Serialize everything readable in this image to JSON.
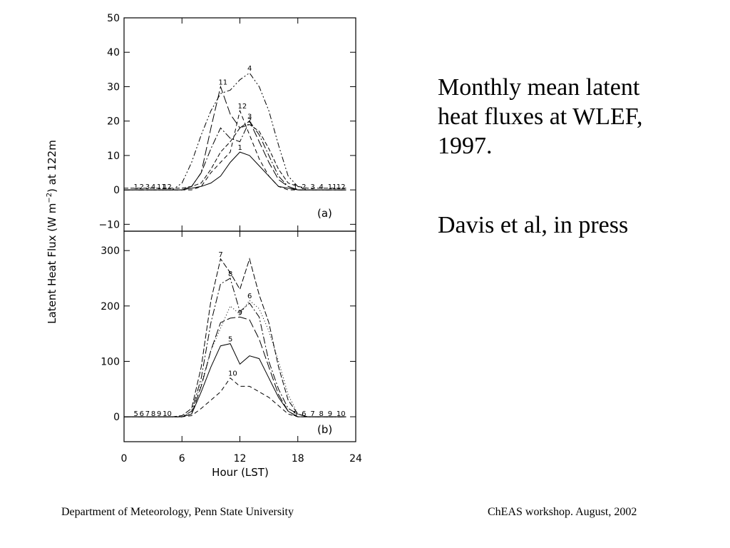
{
  "caption": {
    "line1": "Monthly mean latent",
    "line2": "heat fluxes at WLEF,",
    "line3": "1997.",
    "citation": "Davis et al, in press"
  },
  "footer": {
    "left": "Department of Meteorology, Penn State University",
    "right": "ChEAS workshop. August, 2002"
  },
  "chart_data": [
    {
      "type": "line",
      "panel_label": "(a)",
      "xlabel": "Hour (LST)",
      "ylabel": "Latent Heat Flux (W m^-2) at 122m",
      "xlim": [
        0,
        24
      ],
      "ylim": [
        -12,
        50
      ],
      "xticks": [
        "0",
        "6",
        "12",
        "18",
        "24"
      ],
      "yticks": [
        "−10",
        "0",
        "10",
        "20",
        "30",
        "40",
        "50"
      ],
      "ytick_values": [
        -10,
        0,
        10,
        20,
        30,
        40,
        50
      ],
      "x": [
        0,
        1,
        2,
        3,
        4,
        5,
        6,
        7,
        8,
        9,
        10,
        11,
        12,
        13,
        14,
        15,
        16,
        17,
        18,
        19,
        20,
        21,
        22,
        23
      ],
      "series": [
        {
          "name": "1",
          "dash": "",
          "values": [
            0,
            0,
            0,
            0,
            0,
            0,
            0,
            0.5,
            1,
            2,
            4,
            8,
            11,
            10,
            7,
            4,
            1,
            0.5,
            0,
            0,
            0,
            0,
            0,
            0
          ]
        },
        {
          "name": "2",
          "dash": "6,3",
          "values": [
            0.5,
            0.5,
            0.5,
            0.5,
            0.5,
            0.5,
            0.5,
            1,
            2,
            6,
            11,
            14,
            18,
            19,
            17,
            12,
            6,
            2,
            1,
            0.5,
            0.5,
            0.5,
            0.5,
            0.5
          ]
        },
        {
          "name": "3",
          "dash": "10,3,2,3",
          "values": [
            0,
            0,
            0,
            0,
            0,
            0,
            0,
            1,
            5,
            12,
            18,
            15,
            14,
            20,
            16,
            10,
            4,
            1,
            0,
            0,
            0,
            0,
            0,
            0
          ]
        },
        {
          "name": "4",
          "dash": "8,3,2,3,2,3",
          "values": [
            0,
            0,
            0,
            0,
            0,
            0,
            2,
            8,
            16,
            23,
            28,
            29,
            32,
            34,
            30,
            23,
            13,
            4,
            1,
            0,
            0,
            0,
            0,
            0
          ]
        },
        {
          "name": "11",
          "dash": "12,4",
          "values": [
            0,
            0,
            0,
            0,
            0,
            0,
            0,
            1,
            5,
            18,
            30,
            22,
            18,
            20,
            14,
            8,
            3,
            1,
            0,
            0,
            0,
            0,
            0,
            0
          ]
        },
        {
          "name": "12",
          "dash": "6,4",
          "values": [
            0,
            0,
            0,
            0,
            0,
            0,
            0,
            0,
            1,
            5,
            8,
            11,
            23,
            16,
            9,
            4,
            1,
            0,
            0,
            0,
            0,
            0,
            0,
            0
          ]
        }
      ]
    },
    {
      "type": "line",
      "panel_label": "(b)",
      "xlabel": "Hour (LST)",
      "ylabel": "Latent Heat Flux (W m^-2) at 122m",
      "xlim": [
        0,
        24
      ],
      "ylim": [
        -45,
        335
      ],
      "xticks": [
        "0",
        "6",
        "12",
        "18",
        "24"
      ],
      "yticks": [
        "0",
        "100",
        "200",
        "300"
      ],
      "ytick_values": [
        0,
        100,
        200,
        300
      ],
      "x": [
        0,
        1,
        2,
        3,
        4,
        5,
        6,
        7,
        8,
        9,
        10,
        11,
        12,
        13,
        14,
        15,
        16,
        17,
        18,
        19,
        20,
        21,
        22,
        23
      ],
      "series": [
        {
          "name": "5",
          "dash": "",
          "values": [
            0,
            0,
            0,
            0,
            0,
            0,
            0,
            5,
            45,
            90,
            128,
            132,
            95,
            110,
            105,
            70,
            35,
            10,
            0,
            0,
            0,
            0,
            0,
            0
          ]
        },
        {
          "name": "6",
          "dash": "1,3",
          "values": [
            0,
            0,
            0,
            0,
            0,
            0,
            0,
            10,
            60,
            120,
            160,
            200,
            185,
            210,
            195,
            155,
            100,
            40,
            5,
            0,
            0,
            0,
            0,
            0
          ]
        },
        {
          "name": "7",
          "dash": "8,3",
          "values": [
            0,
            0,
            0,
            0,
            0,
            0,
            2,
            15,
            90,
            210,
            285,
            260,
            230,
            285,
            220,
            170,
            90,
            30,
            5,
            0,
            0,
            0,
            0,
            0
          ]
        },
        {
          "name": "8",
          "dash": "10,3,2,3",
          "values": [
            0,
            0,
            0,
            0,
            0,
            0,
            0,
            10,
            70,
            170,
            240,
            250,
            190,
            205,
            180,
            100,
            50,
            15,
            5,
            0,
            0,
            0,
            0,
            0
          ]
        },
        {
          "name": "9",
          "dash": "12,4",
          "values": [
            0,
            0,
            0,
            0,
            0,
            0,
            0,
            5,
            55,
            120,
            170,
            178,
            180,
            175,
            140,
            90,
            40,
            10,
            0,
            0,
            0,
            0,
            0,
            0
          ]
        },
        {
          "name": "10",
          "dash": "6,4",
          "values": [
            0,
            0,
            0,
            0,
            0,
            0,
            0,
            2,
            15,
            30,
            45,
            70,
            55,
            55,
            45,
            35,
            20,
            5,
            0,
            0,
            0,
            0,
            0,
            0
          ]
        }
      ]
    }
  ]
}
